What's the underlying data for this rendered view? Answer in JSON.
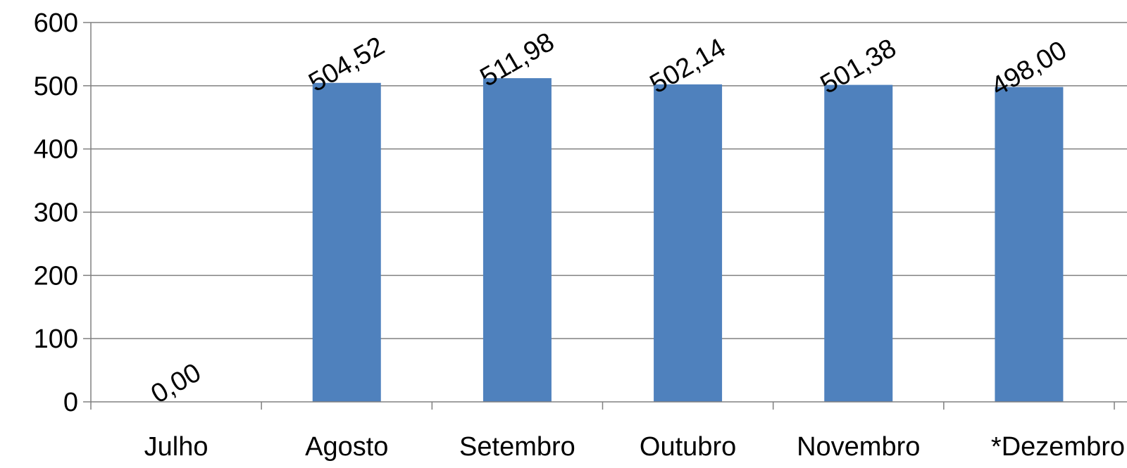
{
  "chart_data": {
    "type": "bar",
    "categories": [
      "Julho",
      "Agosto",
      "Setembro",
      "Outubro",
      "Novembro",
      "*Dezembro"
    ],
    "series": [
      {
        "values": [
          0.0,
          504.52,
          511.98,
          502.14,
          501.38,
          498.0
        ],
        "data_labels": [
          "0,00",
          "504,52",
          "511,98",
          "502,14",
          "501,38",
          "498,00"
        ]
      }
    ],
    "ylim": [
      0,
      600
    ],
    "yticks": [
      0,
      100,
      200,
      300,
      400,
      500,
      600
    ],
    "grid": true,
    "legend": "none",
    "colors": {
      "bar": "#4f81bd",
      "grid": "#808080",
      "axis": "#808080"
    }
  }
}
